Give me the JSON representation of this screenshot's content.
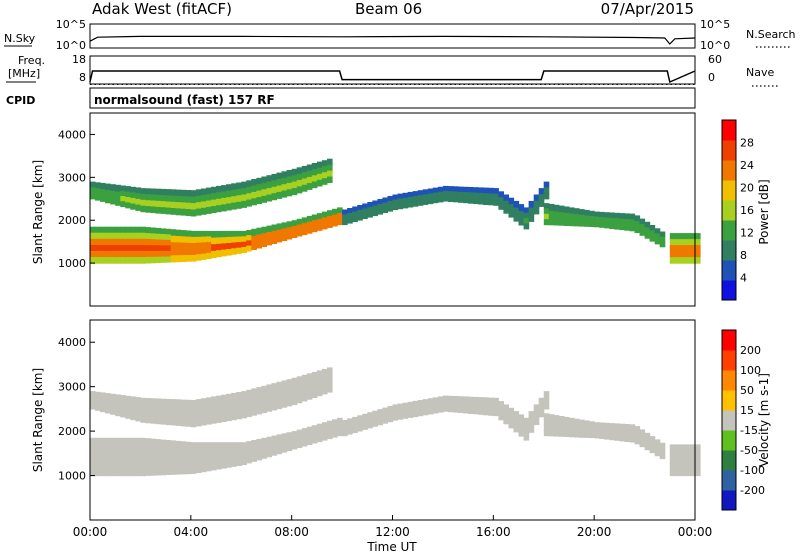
{
  "header": {
    "station": "Adak West (fitACF)",
    "beam": "Beam 06",
    "date": "07/Apr/2015"
  },
  "noise_panel": {
    "left_label": "N.Sky",
    "right_label": "N.Search",
    "left_ticks": [
      "10^5",
      "10^0"
    ],
    "right_ticks": [
      "10^5",
      "10^0"
    ]
  },
  "freq_panel": {
    "left_label_1": "Freq.",
    "left_label_2": "[MHz]",
    "right_label": "Nave",
    "left_ticks": [
      "18",
      "8"
    ],
    "right_ticks": [
      "60",
      "0"
    ]
  },
  "cpid": {
    "label": "CPID",
    "value": "normalsound (fast) 157 RF"
  },
  "time_axis": {
    "label": "Time UT",
    "ticks": [
      "00:00",
      "04:00",
      "08:00",
      "12:00",
      "16:00",
      "20:00",
      "00:00"
    ]
  },
  "power_panel": {
    "ylabel": "Slant Range [km]",
    "yticks": [
      "4000",
      "3000",
      "2000",
      "1000"
    ],
    "colorbar_label": "Power [dB]",
    "colorbar_ticks": [
      "28",
      "24",
      "20",
      "16",
      "12",
      "8",
      "4"
    ]
  },
  "velocity_panel": {
    "ylabel": "Slant Range [km]",
    "yticks": [
      "4000",
      "3000",
      "2000",
      "1000"
    ],
    "colorbar_label": "Velocity [m s-1]",
    "colorbar_ticks": [
      "200",
      "100",
      "50",
      "15",
      "-15",
      "-50",
      "-100",
      "-200"
    ]
  },
  "colors": {
    "power_scale": [
      "#1010e0",
      "#1f52b8",
      "#2f7f60",
      "#3aa040",
      "#a8d020",
      "#f0c000",
      "#f07800",
      "#f04000",
      "#ff0000"
    ],
    "velocity_scale": [
      "#1018c0",
      "#2e62a0",
      "#2f8040",
      "#60c020",
      "#c4c4bc",
      "#ffc000",
      "#ff8800",
      "#ff4000",
      "#ff0000"
    ],
    "ground_scatter": "#c4c4bc"
  },
  "chart_data": [
    {
      "type": "line",
      "title": "N.Sky / N.Search",
      "x_range_hours": [
        0,
        24
      ],
      "y_scale": "log",
      "ylim": [
        1,
        100000
      ],
      "series": [
        {
          "name": "N.Sky",
          "x": [
            0,
            0.3,
            2,
            6,
            10,
            14,
            18,
            22,
            22.8,
            23.0,
            23.2,
            24
          ],
          "log10_values": [
            1.2,
            2.2,
            2.4,
            2.4,
            2.3,
            2.4,
            2.3,
            2.1,
            2.0,
            0.5,
            1.8,
            2.0
          ]
        }
      ]
    },
    {
      "type": "line",
      "title": "Freq. / Nave",
      "x_range_hours": [
        0,
        24
      ],
      "ylim": [
        8,
        18
      ],
      "series": [
        {
          "name": "Freq.",
          "x": [
            0,
            0.1,
            9.9,
            10.0,
            17.9,
            18.0,
            22.9,
            23.0,
            24
          ],
          "values": [
            8,
            12.6,
            12.6,
            9.0,
            9.0,
            12.6,
            12.6,
            8.0,
            12.6
          ]
        },
        {
          "name": "Nave",
          "x": [
            0,
            24
          ],
          "values": [
            12,
            12
          ]
        }
      ]
    },
    {
      "type": "heatmap",
      "title": "Power",
      "xlabel": "Time UT",
      "ylabel": "Slant Range [km]",
      "colorbar": "Power [dB]",
      "x_range_hours": [
        0,
        24
      ],
      "ylim": [
        0,
        4500
      ],
      "zlim": [
        0,
        30
      ],
      "bands": [
        {
          "x": [
            0,
            2,
            4,
            6,
            8,
            9.8
          ],
          "lower_km": [
            1000,
            1000,
            1050,
            1250,
            1600,
            1900
          ],
          "upper_km": [
            1850,
            1850,
            1750,
            1750,
            2000,
            2300
          ],
          "power_db": 26
        },
        {
          "x": [
            0,
            2,
            4,
            6,
            8,
            9.5
          ],
          "lower_km": [
            2500,
            2200,
            2100,
            2300,
            2600,
            2900
          ],
          "upper_km": [
            2900,
            2750,
            2700,
            2900,
            3200,
            3450
          ],
          "power_db": 16
        },
        {
          "x": [
            10,
            12,
            14,
            16,
            17.2,
            18
          ],
          "lower_km": [
            1900,
            2250,
            2450,
            2350,
            1800,
            2500
          ],
          "upper_km": [
            2250,
            2600,
            2800,
            2750,
            2300,
            2900
          ],
          "power_db": 10
        },
        {
          "x": [
            18,
            20,
            21.5,
            22.7
          ],
          "lower_km": [
            1900,
            1850,
            1750,
            1350
          ],
          "upper_km": [
            2400,
            2200,
            2150,
            1700
          ],
          "power_db": 16
        },
        {
          "x": [
            23.0,
            24
          ],
          "lower_km": [
            1000,
            1000
          ],
          "upper_km": [
            1700,
            1700
          ],
          "power_db": 24
        }
      ]
    },
    {
      "type": "heatmap",
      "title": "Velocity",
      "xlabel": "Time UT",
      "ylabel": "Slant Range [km]",
      "colorbar": "Velocity [m s-1]",
      "x_range_hours": [
        0,
        24
      ],
      "ylim": [
        0,
        4500
      ],
      "zlim": [
        -200,
        200
      ],
      "bands": [
        {
          "x": [
            0,
            2,
            4,
            6,
            8,
            9.8
          ],
          "lower_km": [
            1000,
            1000,
            1050,
            1250,
            1600,
            1900
          ],
          "upper_km": [
            1850,
            1850,
            1750,
            1750,
            2000,
            2300
          ],
          "velocity": 0
        },
        {
          "x": [
            0,
            2,
            4,
            6,
            8,
            9.5
          ],
          "lower_km": [
            2500,
            2200,
            2100,
            2300,
            2600,
            2900
          ],
          "upper_km": [
            2900,
            2750,
            2700,
            2900,
            3200,
            3450
          ],
          "velocity": 0
        },
        {
          "x": [
            10,
            12,
            14,
            16,
            17.2,
            18
          ],
          "lower_km": [
            1900,
            2250,
            2450,
            2350,
            1800,
            2500
          ],
          "upper_km": [
            2250,
            2600,
            2800,
            2750,
            2300,
            2900
          ],
          "velocity": 0
        },
        {
          "x": [
            18,
            20,
            21.5,
            22.7
          ],
          "lower_km": [
            1900,
            1850,
            1750,
            1350
          ],
          "upper_km": [
            2400,
            2200,
            2150,
            1700
          ],
          "velocity": 0
        },
        {
          "x": [
            23.0,
            24
          ],
          "lower_km": [
            1000,
            1000
          ],
          "upper_km": [
            1700,
            1700
          ],
          "velocity": 0
        }
      ]
    }
  ]
}
